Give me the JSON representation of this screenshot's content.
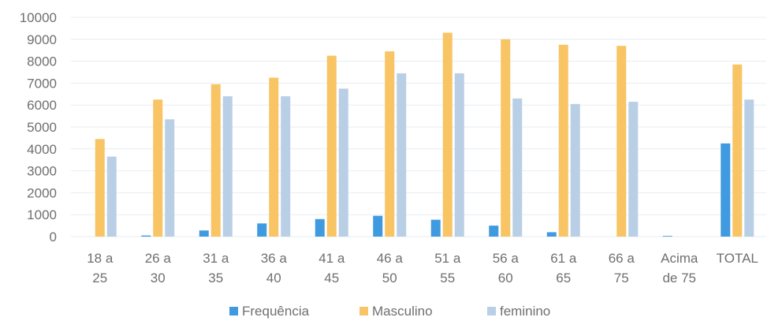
{
  "chart_data": {
    "type": "bar",
    "categories": [
      [
        "18 a",
        "25"
      ],
      [
        "26 a",
        "30"
      ],
      [
        "31 a",
        "35"
      ],
      [
        "36 a",
        "40"
      ],
      [
        "41 a",
        "45"
      ],
      [
        "46 a",
        "50"
      ],
      [
        "51 a",
        "55"
      ],
      [
        "56 a",
        "60"
      ],
      [
        "61 a",
        "65"
      ],
      [
        "66 a",
        "75"
      ],
      [
        "Acima",
        "de 75"
      ],
      [
        "TOTAL",
        ""
      ]
    ],
    "series": [
      {
        "name": "Frequência",
        "color": "#3f9ae0",
        "values": [
          0,
          50,
          280,
          600,
          800,
          950,
          770,
          500,
          200,
          0,
          30,
          4250
        ]
      },
      {
        "name": "Masculino",
        "color": "#f8c464",
        "values": [
          4450,
          6250,
          6950,
          7250,
          8250,
          8450,
          9300,
          9000,
          8750,
          8700,
          0,
          7850
        ]
      },
      {
        "name": "feminino",
        "color": "#b9cfe6",
        "values": [
          3650,
          5350,
          6400,
          6400,
          6750,
          7450,
          7450,
          6300,
          6050,
          6150,
          0,
          6250
        ]
      }
    ],
    "yticks": [
      "10000",
      "9000",
      "8000",
      "7000",
      "6000",
      "5000",
      "4000",
      "3000",
      "2000",
      "1000",
      "0"
    ],
    "ylim": [
      0,
      10000
    ],
    "grid": true,
    "legend_position": "bottom"
  }
}
